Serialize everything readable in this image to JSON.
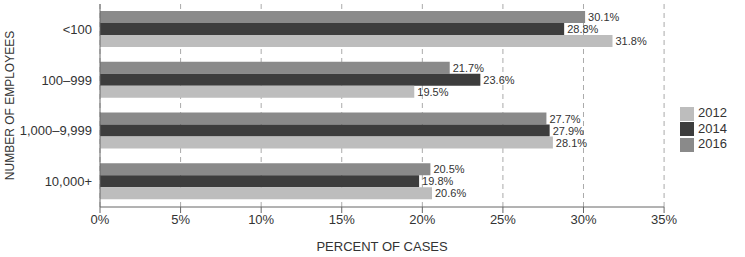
{
  "chart_data": {
    "type": "bar",
    "orientation": "horizontal",
    "categories": [
      "<100",
      "100–999",
      "1,000–9,999",
      "10,000+"
    ],
    "series": [
      {
        "name": "2016",
        "color": "#8a8a8a",
        "values": [
          30.1,
          21.7,
          27.7,
          20.5
        ],
        "value_labels": [
          "30.1%",
          "21.7%",
          "27.7%",
          "20.5%"
        ]
      },
      {
        "name": "2014",
        "color": "#3d3d3d",
        "values": [
          28.8,
          23.6,
          27.9,
          19.8
        ],
        "value_labels": [
          "28.8%",
          "23.6%",
          "27.9%",
          "19.8%"
        ]
      },
      {
        "name": "2012",
        "color": "#bdbdbd",
        "values": [
          31.8,
          19.5,
          28.1,
          20.6
        ],
        "value_labels": [
          "31.8%",
          "19.5%",
          "28.1%",
          "20.6%"
        ]
      }
    ],
    "xlabel": "PERCENT OF CASES",
    "ylabel": "NUMBER OF EMPLOYEES",
    "xlim": [
      0,
      35
    ],
    "xticks": [
      {
        "value": 0,
        "label": "0%"
      },
      {
        "value": 5,
        "label": "5%"
      },
      {
        "value": 10,
        "label": "10%"
      },
      {
        "value": 15,
        "label": "15%"
      },
      {
        "value": 20,
        "label": "20%"
      },
      {
        "value": 25,
        "label": "25%"
      },
      {
        "value": 30,
        "label": "30%"
      },
      {
        "value": 35,
        "label": "35%"
      }
    ],
    "grid": true,
    "legend": "right",
    "data_labels": true
  }
}
